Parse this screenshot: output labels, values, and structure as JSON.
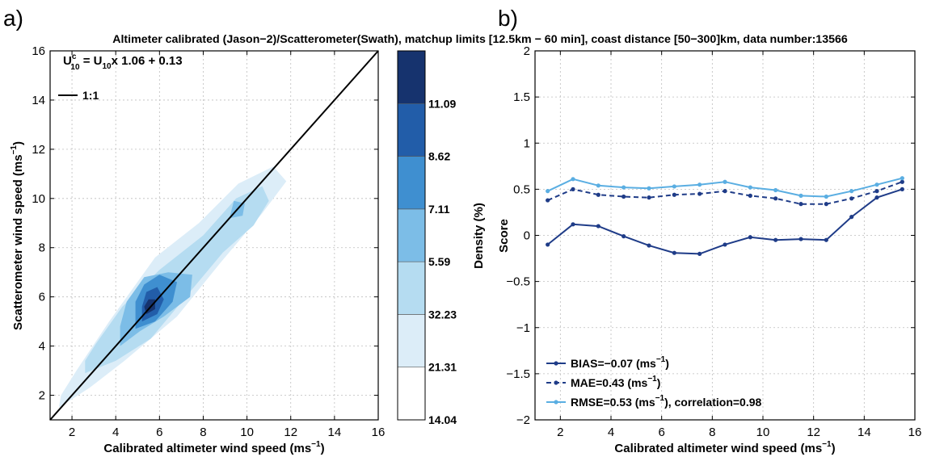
{
  "figure_title": "Altimeter calibrated (Jason−2)/Scatterometer(Swath), matchup limits [12.5km − 60 min], coast distance [50−300]km, data number:13566",
  "chart_data": [
    {
      "type": "heatmap",
      "panel_label": "a)",
      "xlabel": "Calibrated altimeter  wind speed (ms",
      "xlabel_sup": "−1",
      "xlabel_close": ")",
      "ylabel": "Scatterometer wind speed (ms",
      "ylabel_sup": "−1",
      "ylabel_close": ")",
      "xlim": [
        1,
        16
      ],
      "ylim": [
        1,
        16
      ],
      "xticks": [
        2,
        4,
        6,
        8,
        10,
        12,
        14,
        16
      ],
      "yticks": [
        2,
        4,
        6,
        8,
        10,
        12,
        14,
        16
      ],
      "grid": true,
      "equation": {
        "lhs": "U",
        "lhs_sup": "c",
        "lhs_sub": "10",
        "mid": " = U",
        "mid_sub": "10",
        "rhs": "x 1.06 +  0.13"
      },
      "reference_line": {
        "label": "1:1",
        "from": [
          1,
          1
        ],
        "to": [
          16,
          16
        ],
        "color": "#000000"
      },
      "legend_position": "top-left",
      "density_contours": [
        {
          "level": 1,
          "color": "#dcedf8",
          "polygon": [
            [
              1.4,
              1.5
            ],
            [
              2.8,
              2.3
            ],
            [
              4.4,
              3.4
            ],
            [
              6.8,
              5.2
            ],
            [
              8.8,
              7.4
            ],
            [
              10.7,
              9.4
            ],
            [
              11.8,
              10.7
            ],
            [
              11.2,
              11.3
            ],
            [
              9.6,
              10.6
            ],
            [
              7.8,
              9.0
            ],
            [
              5.8,
              7.6
            ],
            [
              3.7,
              5.0
            ],
            [
              2.2,
              3.0
            ],
            [
              1.5,
              2.0
            ]
          ]
        },
        {
          "level": 2,
          "color": "#b5dcf1",
          "polygon": [
            [
              2.6,
              2.9
            ],
            [
              4.0,
              3.4
            ],
            [
              5.6,
              4.3
            ],
            [
              7.3,
              6.1
            ],
            [
              8.9,
              7.8
            ],
            [
              10.3,
              8.9
            ],
            [
              11.0,
              9.9
            ],
            [
              10.7,
              10.5
            ],
            [
              9.5,
              10.0
            ],
            [
              8.0,
              8.5
            ],
            [
              6.0,
              7.1
            ],
            [
              4.3,
              5.6
            ],
            [
              3.1,
              4.1
            ],
            [
              2.6,
              3.4
            ]
          ]
        },
        {
          "level": 3,
          "color": "#7cbde7",
          "polygon": [
            [
              4.2,
              4.0
            ],
            [
              5.1,
              4.6
            ],
            [
              6.2,
              5.2
            ],
            [
              7.4,
              6.0
            ],
            [
              7.5,
              6.9
            ],
            [
              6.4,
              7.0
            ],
            [
              5.3,
              6.8
            ],
            [
              4.5,
              5.8
            ],
            [
              4.2,
              4.8
            ]
          ]
        },
        {
          "level": 4,
          "color": "#3f8fd0",
          "polygon": [
            [
              4.9,
              4.7
            ],
            [
              5.8,
              5.0
            ],
            [
              6.6,
              5.8
            ],
            [
              6.8,
              6.6
            ],
            [
              6.0,
              6.9
            ],
            [
              5.3,
              6.5
            ],
            [
              4.9,
              5.8
            ]
          ]
        },
        {
          "level": 5,
          "color": "#225da9",
          "polygon": [
            [
              5.2,
              5.0
            ],
            [
              5.9,
              5.3
            ],
            [
              6.2,
              5.9
            ],
            [
              5.9,
              6.4
            ],
            [
              5.4,
              6.2
            ],
            [
              5.2,
              5.6
            ]
          ]
        },
        {
          "level": 6,
          "color": "#16336e",
          "polygon": [
            [
              5.4,
              5.3
            ],
            [
              5.8,
              5.5
            ],
            [
              5.8,
              5.9
            ],
            [
              5.5,
              5.9
            ],
            [
              5.3,
              5.6
            ]
          ]
        },
        {
          "level": 3,
          "color": "#7cbde7",
          "polygon": [
            [
              9.2,
              9.2
            ],
            [
              9.8,
              9.3
            ],
            [
              9.9,
              9.8
            ],
            [
              9.4,
              9.9
            ]
          ]
        }
      ],
      "colorbar": {
        "label": "Density (%)",
        "bins": [
          {
            "color": "#ffffff",
            "label": "14.04"
          },
          {
            "color": "#dcedf8",
            "label": "21.31"
          },
          {
            "color": "#b5dcf1",
            "label": "32.23"
          },
          {
            "color": "#7cbde7",
            "label": "5.59"
          },
          {
            "color": "#3f8fd0",
            "label": "7.11"
          },
          {
            "color": "#225da9",
            "label": "8.62"
          },
          {
            "color": "#16336e",
            "label": "11.09"
          }
        ]
      }
    },
    {
      "type": "line",
      "panel_label": "b)",
      "xlabel": "Calibrated altimeter wind speed (ms",
      "xlabel_sup": "−1",
      "xlabel_close": ")",
      "ylabel": "Score",
      "xlim": [
        1,
        16
      ],
      "ylim": [
        -2,
        2
      ],
      "xticks": [
        2,
        4,
        6,
        8,
        10,
        12,
        14,
        16
      ],
      "yticks": [
        -2,
        -1.5,
        -1,
        -0.5,
        0,
        0.5,
        1,
        1.5,
        2
      ],
      "ytick_labels": [
        "−2",
        "−1.5",
        "−1",
        "−0.5",
        "0",
        "0.5",
        "1",
        "1.5",
        "2"
      ],
      "grid": true,
      "legend_position": "bottom-left",
      "x": [
        1.5,
        2.5,
        3.5,
        4.5,
        5.5,
        6.5,
        7.5,
        8.5,
        9.5,
        10.5,
        11.5,
        12.5,
        13.5,
        14.5,
        15.5
      ],
      "series": [
        {
          "legend": "BIAS=−0.07 (ms",
          "legend_sup": "−1",
          "legend_tail": ")",
          "color": "#1f3c88",
          "dash": false,
          "values": [
            -0.1,
            0.12,
            0.1,
            -0.01,
            -0.11,
            -0.19,
            -0.2,
            -0.1,
            -0.02,
            -0.05,
            -0.04,
            -0.05,
            0.2,
            0.41,
            0.5
          ]
        },
        {
          "legend": "MAE=0.43 (ms",
          "legend_sup": "−1",
          "legend_tail": ")",
          "color": "#1f3c88",
          "dash": true,
          "values": [
            0.38,
            0.5,
            0.44,
            0.42,
            0.41,
            0.44,
            0.45,
            0.48,
            0.43,
            0.4,
            0.34,
            0.34,
            0.4,
            0.48,
            0.58
          ]
        },
        {
          "legend": "RMSE=0.53 (ms",
          "legend_sup": "−1",
          "legend_tail": "), correlation=0.98",
          "color": "#5aaee2",
          "dash": false,
          "values": [
            0.48,
            0.61,
            0.54,
            0.52,
            0.51,
            0.53,
            0.55,
            0.58,
            0.52,
            0.49,
            0.43,
            0.42,
            0.48,
            0.55,
            0.62
          ]
        }
      ]
    }
  ]
}
